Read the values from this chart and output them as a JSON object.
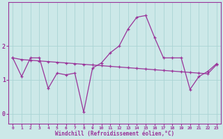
{
  "xlabel": "Windchill (Refroidissement éolien,°C)",
  "background_color": "#cce8e8",
  "line_color": "#993399",
  "grid_color": "#aad4d4",
  "xlim_min": -0.5,
  "xlim_max": 23.5,
  "ylim_min": -0.3,
  "ylim_max": 3.3,
  "yticks": [
    0,
    1,
    2
  ],
  "xticks": [
    0,
    1,
    2,
    3,
    4,
    5,
    6,
    7,
    8,
    9,
    10,
    11,
    12,
    13,
    14,
    15,
    16,
    17,
    18,
    19,
    20,
    21,
    22,
    23
  ],
  "series1_x": [
    0,
    1,
    2,
    3,
    4,
    5,
    6,
    7,
    8,
    9,
    10,
    11,
    12,
    13,
    14,
    15,
    16,
    17,
    18,
    19,
    20,
    21,
    22,
    23
  ],
  "series1_y": [
    1.65,
    1.1,
    1.65,
    1.65,
    0.75,
    1.2,
    1.15,
    1.2,
    0.05,
    1.35,
    1.5,
    1.8,
    2.0,
    2.5,
    2.85,
    2.9,
    2.25,
    1.65,
    1.65,
    1.65,
    0.72,
    1.1,
    1.25,
    1.48
  ],
  "series2_x": [
    0,
    1,
    2,
    3,
    4,
    5,
    6,
    7,
    8,
    9,
    10,
    11,
    12,
    13,
    14,
    15,
    16,
    17,
    18,
    19,
    20,
    21,
    22,
    23
  ],
  "series2_y": [
    1.65,
    1.6,
    1.58,
    1.56,
    1.54,
    1.52,
    1.5,
    1.48,
    1.46,
    1.44,
    1.42,
    1.4,
    1.38,
    1.36,
    1.34,
    1.32,
    1.3,
    1.28,
    1.26,
    1.24,
    1.22,
    1.2,
    1.18,
    1.45
  ]
}
